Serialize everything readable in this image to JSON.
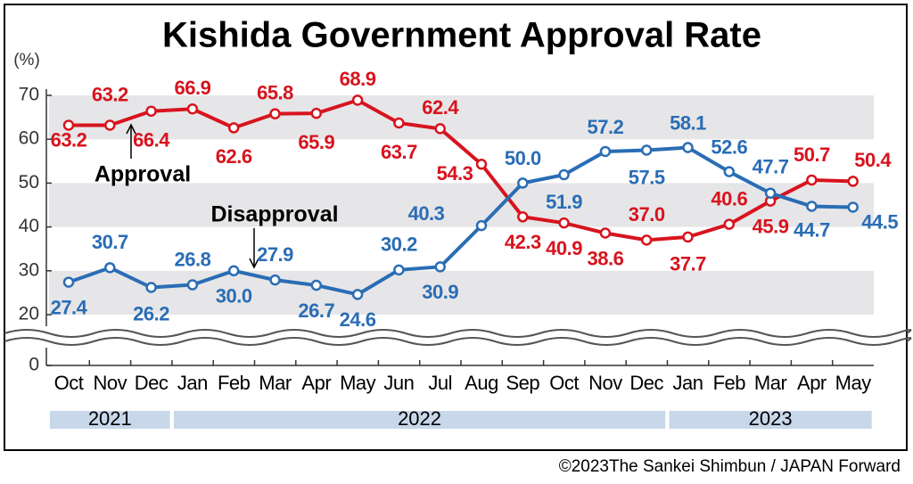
{
  "chart_data": {
    "type": "line",
    "title": "Kishida Government Approval Rate",
    "y_unit": "(%)",
    "categories": [
      "Oct",
      "Nov",
      "Dec",
      "Jan",
      "Feb",
      "Mar",
      "Apr",
      "May",
      "Jun",
      "Jul",
      "Aug",
      "Sep",
      "Oct",
      "Nov",
      "Dec",
      "Jan",
      "Feb",
      "Mar",
      "Apr",
      "May"
    ],
    "year_groups": [
      "2021",
      "2022",
      "2023"
    ],
    "series": [
      {
        "name": "Approval",
        "color": "#d7141e",
        "values": [
          63.2,
          63.2,
          66.4,
          66.9,
          62.6,
          65.8,
          65.9,
          68.9,
          63.7,
          62.4,
          54.3,
          42.3,
          40.9,
          38.6,
          37.0,
          37.7,
          40.6,
          45.9,
          50.7,
          50.4
        ],
        "value_labels": [
          "63.2",
          "63.2",
          "66.4",
          "66.9",
          "62.6",
          "65.8",
          "65.9",
          "68.9",
          "63.7",
          "62.4",
          "54.3",
          "42.3",
          "40.9",
          "38.6",
          "37.0",
          "37.7",
          "40.6",
          "45.9",
          "50.7",
          "50.4"
        ]
      },
      {
        "name": "Disapproval",
        "color": "#2a6db5",
        "values": [
          27.4,
          30.7,
          26.2,
          26.8,
          30.0,
          27.9,
          26.7,
          24.6,
          30.2,
          30.9,
          40.3,
          50.0,
          51.9,
          57.2,
          57.5,
          58.1,
          52.6,
          47.7,
          44.7,
          44.5
        ],
        "value_labels": [
          "27.4",
          "30.7",
          "26.2",
          "26.8",
          "30.0",
          "27.9",
          "26.7",
          "24.6",
          "30.2",
          "30.9",
          "40.3",
          "50.0",
          "51.9",
          "57.2",
          "57.5",
          "58.1",
          "52.6",
          "47.7",
          "44.7",
          "44.5"
        ]
      }
    ],
    "ylim": [
      0,
      70
    ],
    "yticks": [
      0,
      20,
      30,
      40,
      50,
      60,
      70
    ],
    "axis_break": [
      0,
      20
    ],
    "grid": "bands",
    "copyright": "©2023The Sankei Shimbun / JAPAN Forward"
  }
}
